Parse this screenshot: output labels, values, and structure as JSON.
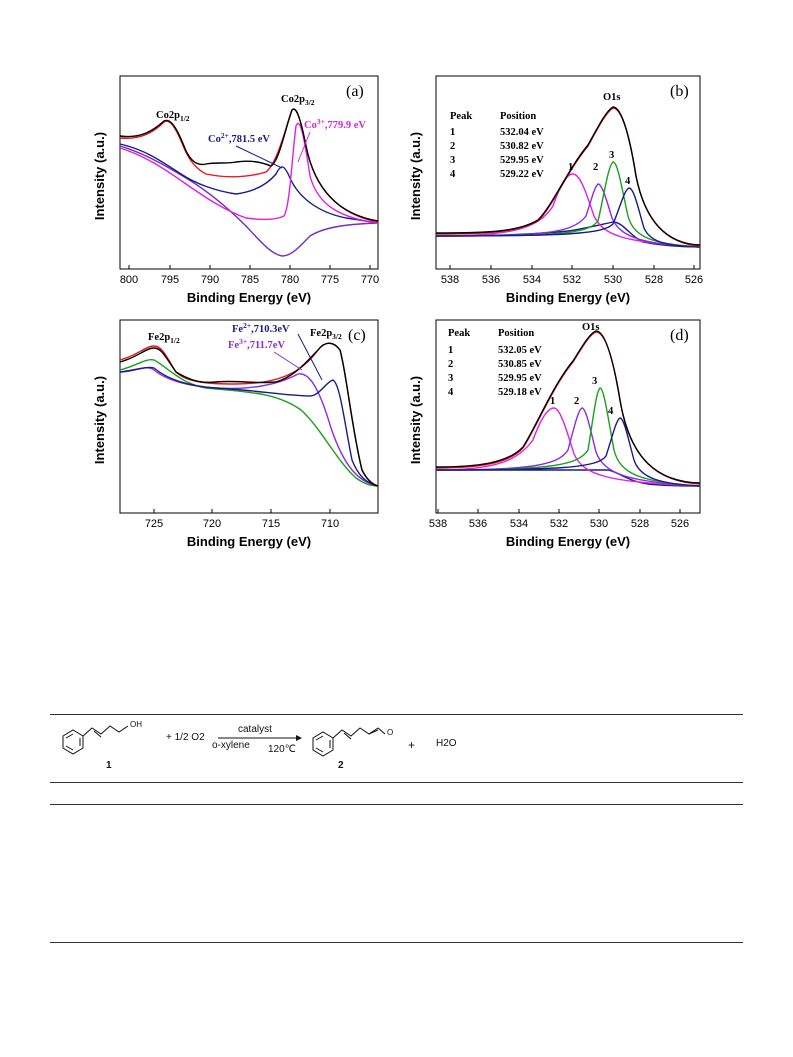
{
  "panels": [
    {
      "id": "a",
      "label": "(a)",
      "xlabel": "Binding Energy (eV)",
      "ylabel": "Intensity (a.u.)",
      "ticks": [
        800,
        795,
        790,
        785,
        780,
        775,
        770
      ],
      "annotations": {
        "peak_left": "Co2p1/2",
        "peak_right": "Co2p3/2",
        "co2": "Co2+,781.5 eV",
        "co3": "Co3+,779.9 eV"
      }
    },
    {
      "id": "b",
      "label": "(b)",
      "xlabel": "Binding Energy (eV)",
      "ylabel": "Intensity (a.u.)",
      "ticks": [
        538,
        536,
        534,
        532,
        530,
        528,
        526
      ],
      "species": "O1s",
      "table_header": [
        "Peak",
        "Position"
      ],
      "table": [
        [
          "1",
          "532.04 eV"
        ],
        [
          "2",
          "530.82 eV"
        ],
        [
          "3",
          "529.95 eV"
        ],
        [
          "4",
          "529.22 eV"
        ]
      ],
      "peak_numbers": [
        "1",
        "2",
        "3",
        "4"
      ]
    },
    {
      "id": "c",
      "label": "(c)",
      "xlabel": "Binding Energy (eV)",
      "ylabel": "Intensity (a.u.)",
      "ticks": [
        725,
        720,
        715,
        710
      ],
      "annotations": {
        "peak_left": "Fe2p1/2",
        "peak_right": "Fe2p3/2",
        "fe2": "Fe2+,710.3eV",
        "fe3": "Fe3+,711.7eV"
      }
    },
    {
      "id": "d",
      "label": "(d)",
      "xlabel": "Binding Energy (eV)",
      "ylabel": "Intensity (a.u.)",
      "ticks": [
        538,
        536,
        534,
        532,
        530,
        528,
        526
      ],
      "species": "O1s",
      "table_header": [
        "Peak",
        "Position"
      ],
      "table": [
        [
          "1",
          "532.05 eV"
        ],
        [
          "2",
          "530.85 eV"
        ],
        [
          "3",
          "529.95 eV"
        ],
        [
          "4",
          "529.18 eV"
        ]
      ],
      "peak_numbers": [
        "1",
        "2",
        "3",
        "4"
      ]
    }
  ],
  "scheme": {
    "reagent": "+ 1/2 O2",
    "catalyst": "catalyst",
    "solvent": "o-xylene",
    "temperature": "120℃",
    "oh": "OH",
    "o": "O",
    "byproduct": "+",
    "water": "H2O",
    "compound1": "1",
    "compound2": "2"
  },
  "chart_data": [
    {
      "type": "line",
      "title": "(a)",
      "xlabel": "Binding Energy (eV)",
      "ylabel": "Intensity (a.u.)",
      "xlim": [
        802,
        770
      ],
      "x_reversed": true,
      "peaks": [
        {
          "name": "Co2+",
          "center": 781.5
        },
        {
          "name": "Co3+",
          "center": 779.9
        }
      ],
      "series_colors": [
        "#000000",
        "#e8141e",
        "#1a1a8c",
        "#e020e0",
        "#7030c0"
      ]
    },
    {
      "type": "line",
      "title": "(b)",
      "xlabel": "Binding Energy (eV)",
      "ylabel": "Intensity (a.u.)",
      "xlim": [
        539,
        526
      ],
      "x_reversed": true,
      "peaks": [
        {
          "name": "1",
          "center": 532.04
        },
        {
          "name": "2",
          "center": 530.82
        },
        {
          "name": "3",
          "center": 529.95
        },
        {
          "name": "4",
          "center": 529.22
        }
      ],
      "series_colors": [
        "#000000",
        "#e8141e",
        "#e020e0",
        "#8a2be2",
        "#18a018",
        "#1a1a8c"
      ]
    },
    {
      "type": "line",
      "title": "(c)",
      "xlabel": "Binding Energy (eV)",
      "ylabel": "Intensity (a.u.)",
      "xlim": [
        728,
        706
      ],
      "x_reversed": true,
      "peaks": [
        {
          "name": "Fe2+",
          "center": 710.3
        },
        {
          "name": "Fe3+",
          "center": 711.7
        }
      ],
      "series_colors": [
        "#000000",
        "#e8141e",
        "#1a1a8c",
        "#8a2be2",
        "#18a018"
      ]
    },
    {
      "type": "line",
      "title": "(d)",
      "xlabel": "Binding Energy (eV)",
      "ylabel": "Intensity (a.u.)",
      "xlim": [
        538,
        525
      ],
      "x_reversed": true,
      "peaks": [
        {
          "name": "1",
          "center": 532.05
        },
        {
          "name": "2",
          "center": 530.85
        },
        {
          "name": "3",
          "center": 529.95
        },
        {
          "name": "4",
          "center": 529.18
        }
      ],
      "series_colors": [
        "#000000",
        "#e8141e",
        "#e020e0",
        "#8a2be2",
        "#18a018",
        "#1a1a8c"
      ]
    }
  ]
}
